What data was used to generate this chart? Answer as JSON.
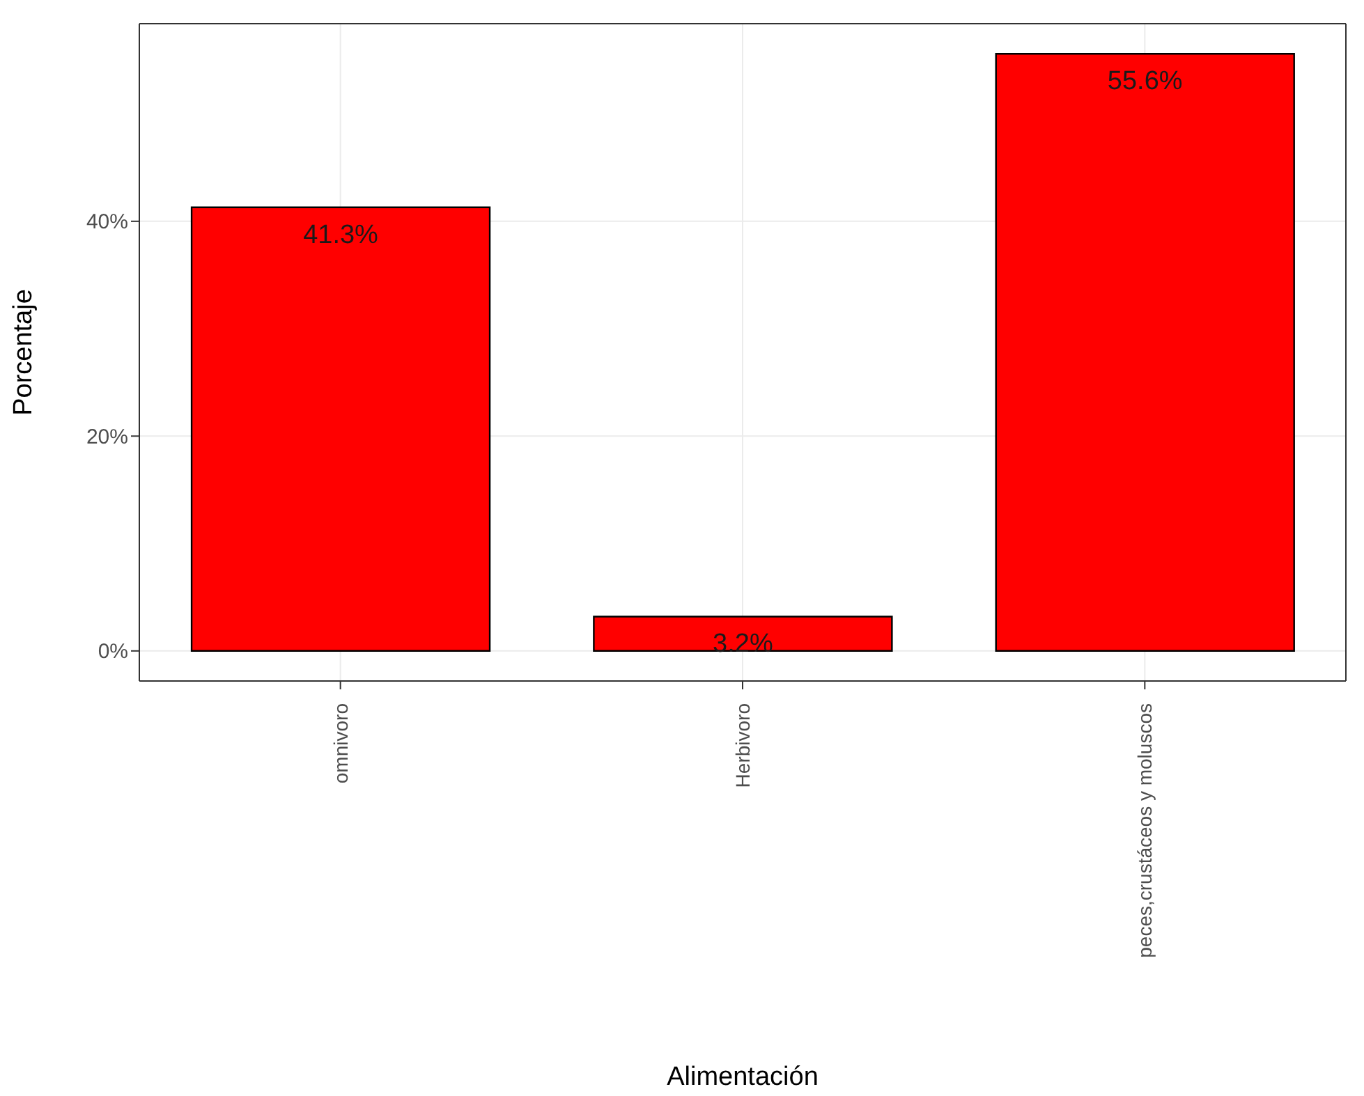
{
  "chart_data": {
    "type": "bar",
    "xlabel": "Alimentación",
    "ylabel": "Porcentaje",
    "categories": [
      "omnivoro",
      "Herbivoro",
      "peces,crustáceos y moluscos"
    ],
    "values": [
      41.3,
      3.2,
      55.6
    ],
    "value_labels": [
      "41.3%",
      "3.2%",
      "55.6%"
    ],
    "color": "#ff0000",
    "ylim": [
      -2.8,
      58.4
    ],
    "yticks": [
      {
        "value": 0,
        "label": "0%"
      },
      {
        "value": 20,
        "label": "20%"
      },
      {
        "value": 40,
        "label": "40%"
      }
    ],
    "grid": true,
    "legend": false
  }
}
